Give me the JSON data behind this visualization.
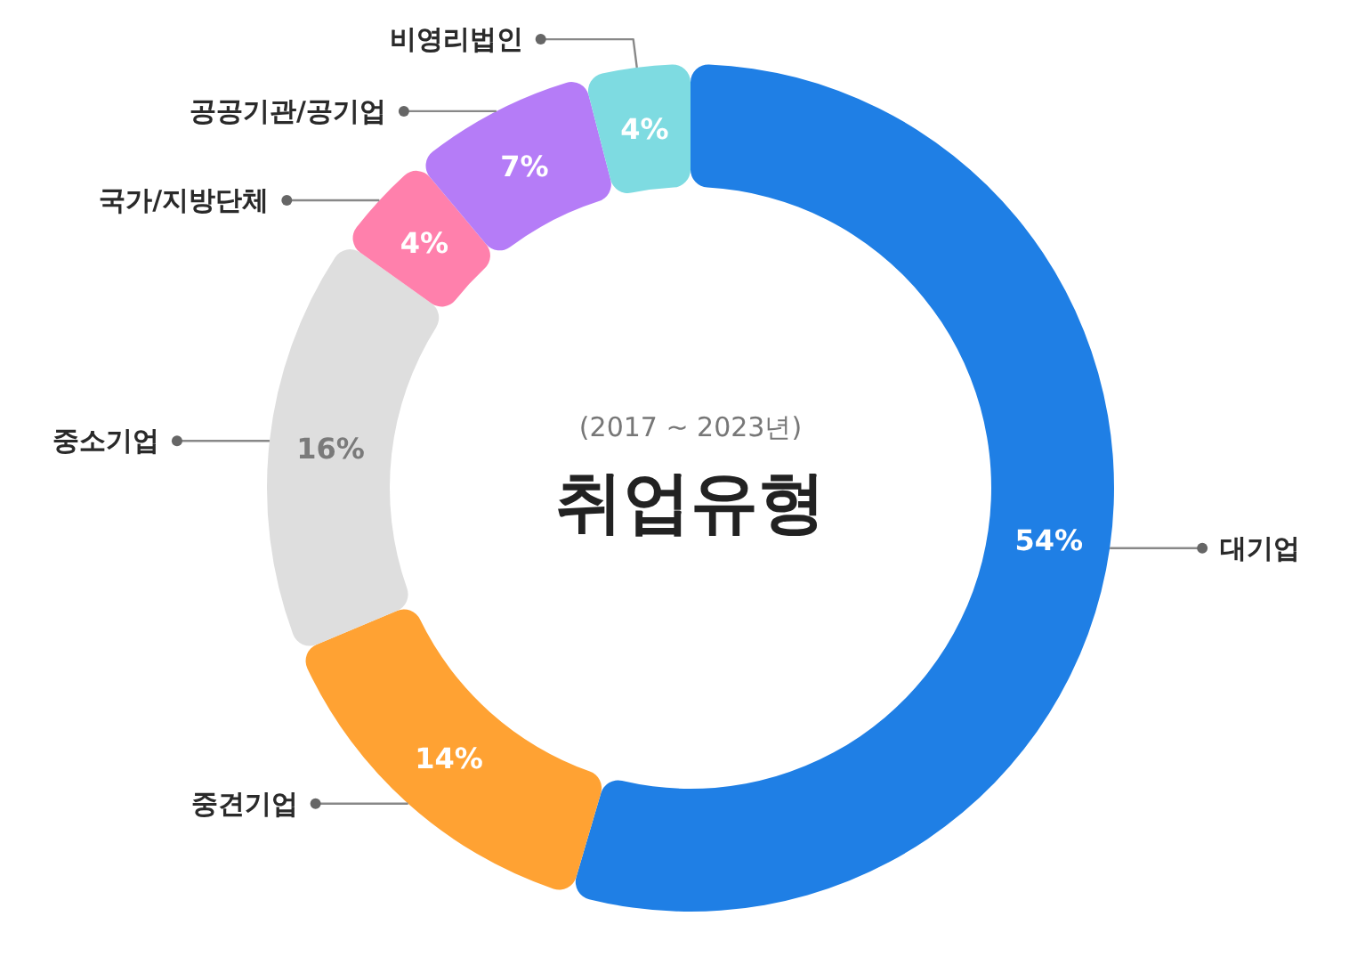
{
  "chart_data": {
    "type": "donut",
    "title": "취업유형",
    "subtitle": "(2017 ~ 2023년)",
    "categories": [
      "대기업",
      "중견기업",
      "중소기업",
      "국가/지방단체",
      "공공기관/공기업",
      "비영리법인"
    ],
    "values": [
      54,
      14,
      16,
      4,
      7,
      4
    ],
    "colors": [
      "#1f7fe5",
      "#ffa233",
      "#dedede",
      "#ff80ac",
      "#b57cf7",
      "#7edbe1"
    ],
    "value_labels": [
      "54%",
      "14%",
      "16%",
      "4%",
      "7%",
      "4%"
    ]
  }
}
